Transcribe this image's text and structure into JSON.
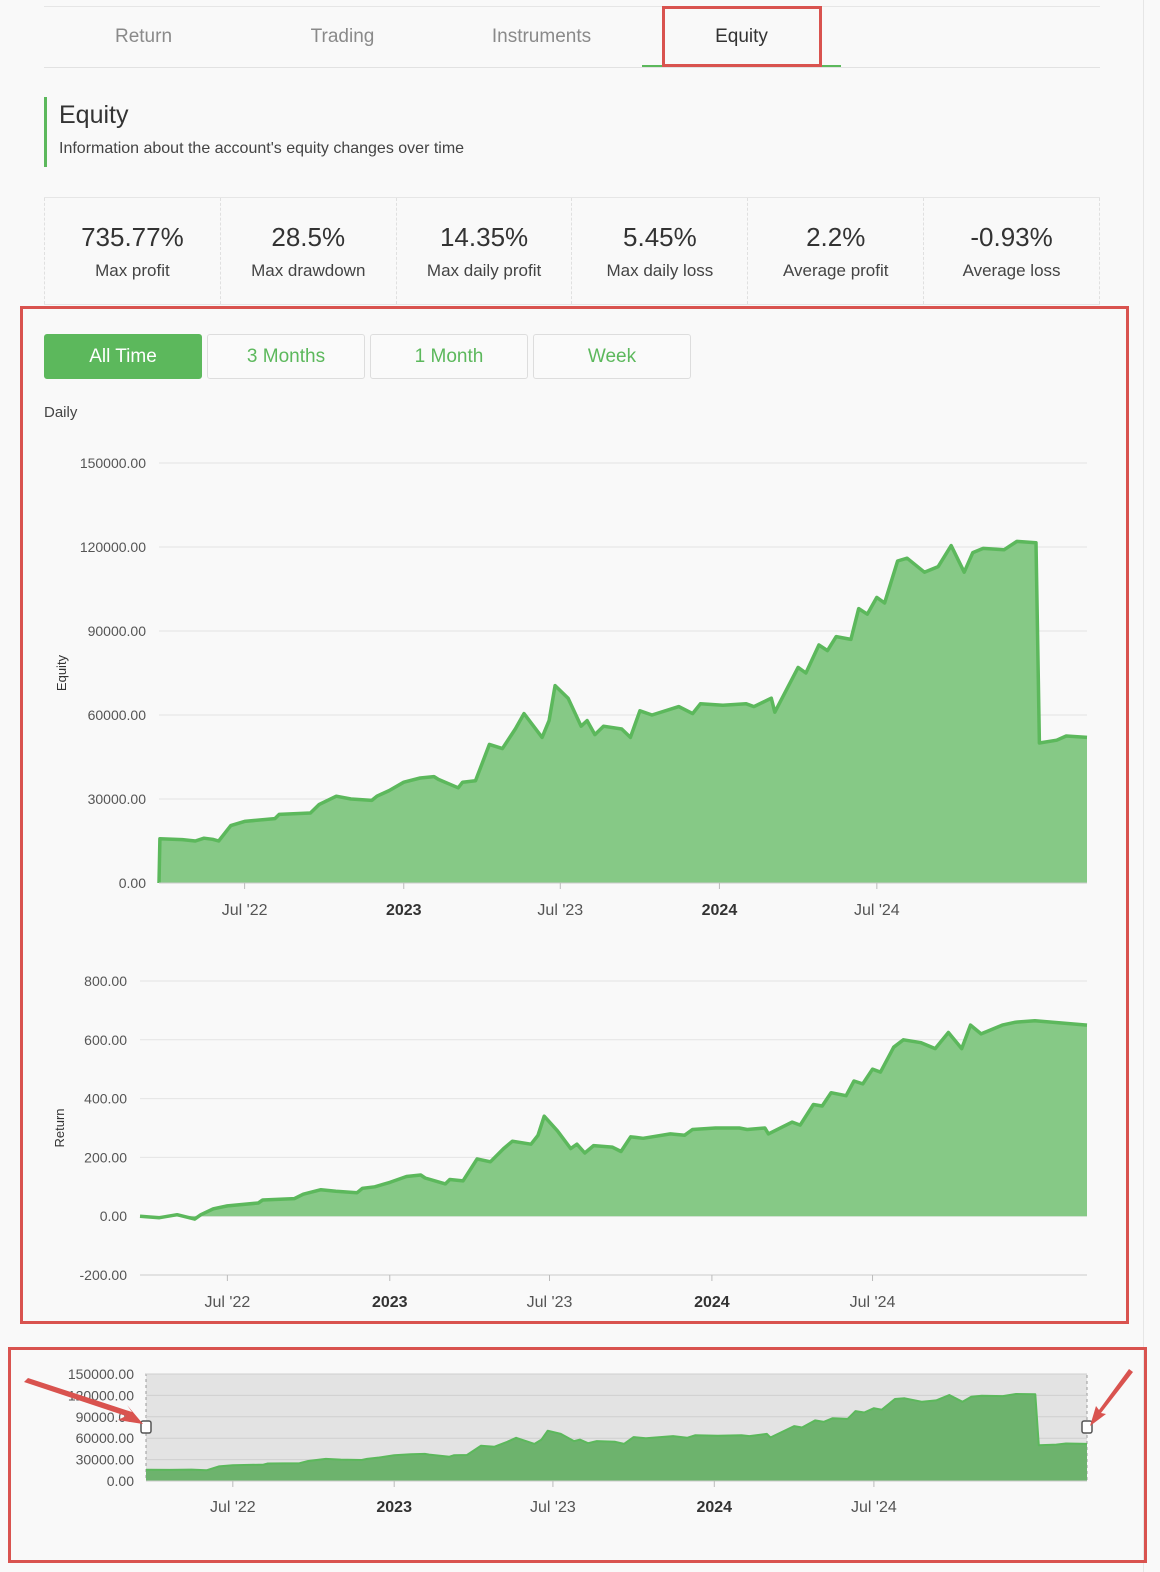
{
  "tabs": [
    {
      "label": "Return",
      "active": false
    },
    {
      "label": "Trading",
      "active": false
    },
    {
      "label": "Instruments",
      "active": false
    },
    {
      "label": "Equity",
      "active": true
    }
  ],
  "section": {
    "title": "Equity",
    "subtitle": "Information about the account's equity changes over time"
  },
  "stats": [
    {
      "value": "735.77%",
      "label": "Max profit"
    },
    {
      "value": "28.5%",
      "label": "Max drawdown"
    },
    {
      "value": "14.35%",
      "label": "Max daily profit"
    },
    {
      "value": "5.45%",
      "label": "Max daily loss"
    },
    {
      "value": "2.2%",
      "label": "Average profit"
    },
    {
      "value": "-0.93%",
      "label": "Average loss"
    }
  ],
  "range_buttons": [
    {
      "label": "All Time",
      "active": true
    },
    {
      "label": "3 Months",
      "active": false
    },
    {
      "label": "1 Month",
      "active": false
    },
    {
      "label": "Week",
      "active": false
    }
  ],
  "period_label": "Daily",
  "colors": {
    "accent": "#5cb85c",
    "fill": "#86c986",
    "navigator_fill": "#6db36d",
    "highlight": "#d9534f"
  },
  "chart_data": [
    {
      "type": "area",
      "ylabel": "Equity",
      "ylim": [
        0,
        150000
      ],
      "y_ticks": [
        "150000.00",
        "120000.00",
        "90000.00",
        "60000.00",
        "30000.00",
        "0.00"
      ],
      "y_tick_values": [
        150000,
        120000,
        90000,
        60000,
        30000,
        0
      ],
      "x_labels": [
        {
          "text": "Jul '22",
          "bold": false
        },
        {
          "text": "2023",
          "bold": true
        },
        {
          "text": "Jul '23",
          "bold": false
        },
        {
          "text": "2024",
          "bold": true
        },
        {
          "text": "Jul '24",
          "bold": false
        }
      ],
      "x_label_dates": [
        "2022-07-01",
        "2023-01-01",
        "2023-07-01",
        "2024-01-01",
        "2024-07-01"
      ],
      "x_range": [
        "2022-03-24",
        "2025-03-01"
      ],
      "x": [
        "2022-03-24",
        "2022-03-25",
        "2022-04-20",
        "2022-05-05",
        "2022-05-15",
        "2022-05-25",
        "2022-06-01",
        "2022-06-15",
        "2022-07-01",
        "2022-08-05",
        "2022-08-10",
        "2022-09-15",
        "2022-09-25",
        "2022-10-15",
        "2022-11-01",
        "2022-11-25",
        "2022-12-01",
        "2022-12-15",
        "2023-01-01",
        "2023-01-20",
        "2023-02-05",
        "2023-02-10",
        "2023-03-05",
        "2023-03-10",
        "2023-03-25",
        "2023-04-10",
        "2023-04-25",
        "2023-05-10",
        "2023-05-20",
        "2023-06-10",
        "2023-06-18",
        "2023-06-25",
        "2023-07-10",
        "2023-07-25",
        "2023-08-01",
        "2023-08-10",
        "2023-08-20",
        "2023-09-10",
        "2023-09-20",
        "2023-10-01",
        "2023-10-15",
        "2023-11-15",
        "2023-12-01",
        "2023-12-10",
        "2024-01-05",
        "2024-02-01",
        "2024-02-10",
        "2024-03-01",
        "2024-03-05",
        "2024-04-01",
        "2024-04-10",
        "2024-04-25",
        "2024-05-05",
        "2024-05-15",
        "2024-06-01",
        "2024-06-10",
        "2024-06-20",
        "2024-07-01",
        "2024-07-10",
        "2024-07-25",
        "2024-08-05",
        "2024-08-25",
        "2024-09-10",
        "2024-09-25",
        "2024-10-10",
        "2024-10-20",
        "2024-11-01",
        "2024-11-25",
        "2024-12-10",
        "2025-01-01",
        "2025-01-05",
        "2025-01-25",
        "2025-02-05",
        "2025-03-01"
      ],
      "y": [
        0,
        15800,
        15500,
        15000,
        16000,
        15600,
        15000,
        20500,
        22000,
        23000,
        24500,
        25000,
        28000,
        31000,
        30000,
        29500,
        31000,
        33000,
        36000,
        37500,
        38000,
        37000,
        34000,
        36000,
        36500,
        49500,
        48000,
        55000,
        60500,
        52000,
        58000,
        70500,
        66000,
        56000,
        58000,
        53000,
        56000,
        55000,
        52000,
        61500,
        60000,
        63000,
        60500,
        64000,
        63500,
        64000,
        63000,
        66000,
        61000,
        77000,
        75000,
        85000,
        83000,
        88000,
        87000,
        98000,
        96000,
        102000,
        100000,
        115000,
        116000,
        111000,
        113000,
        120500,
        111000,
        118000,
        119500,
        119000,
        122000,
        121500,
        50000,
        51000,
        52500,
        52000
      ]
    },
    {
      "type": "area",
      "ylabel": "Return",
      "ylim": [
        -200,
        800
      ],
      "y_ticks": [
        "800.00",
        "600.00",
        "400.00",
        "200.00",
        "0.00",
        "-200.00"
      ],
      "y_tick_values": [
        800,
        600,
        400,
        200,
        0,
        -200
      ],
      "x_labels": [
        {
          "text": "Jul '22",
          "bold": false
        },
        {
          "text": "2023",
          "bold": true
        },
        {
          "text": "Jul '23",
          "bold": false
        },
        {
          "text": "2024",
          "bold": true
        },
        {
          "text": "Jul '24",
          "bold": false
        }
      ],
      "x_label_dates": [
        "2022-07-01",
        "2023-01-01",
        "2023-07-01",
        "2024-01-01",
        "2024-07-01"
      ],
      "x_range": [
        "2022-03-24",
        "2025-03-01"
      ],
      "x": [
        "2022-03-24",
        "2022-04-15",
        "2022-05-05",
        "2022-05-25",
        "2022-06-01",
        "2022-06-15",
        "2022-07-01",
        "2022-08-05",
        "2022-08-10",
        "2022-09-15",
        "2022-09-25",
        "2022-10-15",
        "2022-11-01",
        "2022-11-25",
        "2022-12-01",
        "2022-12-15",
        "2023-01-01",
        "2023-01-20",
        "2023-02-05",
        "2023-02-10",
        "2023-03-05",
        "2023-03-10",
        "2023-03-25",
        "2023-04-10",
        "2023-04-25",
        "2023-05-10",
        "2023-05-20",
        "2023-06-10",
        "2023-06-18",
        "2023-06-25",
        "2023-07-10",
        "2023-07-25",
        "2023-08-01",
        "2023-08-10",
        "2023-08-20",
        "2023-09-10",
        "2023-09-20",
        "2023-10-01",
        "2023-10-15",
        "2023-11-15",
        "2023-12-01",
        "2023-12-10",
        "2024-01-05",
        "2024-02-01",
        "2024-02-10",
        "2024-03-01",
        "2024-03-05",
        "2024-04-01",
        "2024-04-10",
        "2024-04-25",
        "2024-05-05",
        "2024-05-15",
        "2024-06-01",
        "2024-06-10",
        "2024-06-20",
        "2024-07-01",
        "2024-07-10",
        "2024-07-25",
        "2024-08-05",
        "2024-08-25",
        "2024-09-10",
        "2024-09-25",
        "2024-10-10",
        "2024-10-20",
        "2024-11-01",
        "2024-11-25",
        "2024-12-10",
        "2025-01-01",
        "2025-03-01"
      ],
      "y": [
        0,
        -5,
        5,
        -10,
        5,
        25,
        35,
        45,
        55,
        60,
        75,
        90,
        85,
        80,
        95,
        100,
        115,
        135,
        140,
        130,
        110,
        125,
        120,
        195,
        185,
        230,
        255,
        245,
        275,
        340,
        290,
        230,
        245,
        215,
        240,
        235,
        220,
        270,
        265,
        280,
        275,
        295,
        300,
        300,
        295,
        300,
        280,
        320,
        310,
        380,
        375,
        420,
        410,
        460,
        450,
        500,
        490,
        575,
        600,
        590,
        570,
        625,
        570,
        650,
        620,
        650,
        660,
        665,
        650
      ]
    },
    {
      "type": "area",
      "ylabel": "",
      "ylim": [
        0,
        150000
      ],
      "y_ticks": [
        "150000.00",
        "120000.00",
        "90000.00",
        "60000.00",
        "30000.00",
        "0.00"
      ],
      "y_tick_values": [
        150000,
        120000,
        90000,
        60000,
        30000,
        0
      ],
      "x_labels": [
        {
          "text": "Jul '22",
          "bold": false
        },
        {
          "text": "2023",
          "bold": true
        },
        {
          "text": "Jul '23",
          "bold": false
        },
        {
          "text": "2024",
          "bold": true
        },
        {
          "text": "Jul '24",
          "bold": false
        }
      ],
      "x_label_dates": [
        "2022-07-01",
        "2023-01-01",
        "2023-07-01",
        "2024-01-01",
        "2024-07-01"
      ],
      "x_range": [
        "2022-03-24",
        "2025-03-01"
      ],
      "x": [
        "2022-03-24",
        "2022-04-20",
        "2022-05-15",
        "2022-06-01",
        "2022-06-15",
        "2022-07-01",
        "2022-08-05",
        "2022-08-10",
        "2022-09-15",
        "2022-09-25",
        "2022-10-15",
        "2022-11-01",
        "2022-11-25",
        "2022-12-01",
        "2022-12-15",
        "2023-01-01",
        "2023-01-20",
        "2023-02-05",
        "2023-02-10",
        "2023-03-05",
        "2023-03-10",
        "2023-03-25",
        "2023-04-10",
        "2023-04-25",
        "2023-05-10",
        "2023-05-20",
        "2023-06-10",
        "2023-06-18",
        "2023-06-25",
        "2023-07-10",
        "2023-07-25",
        "2023-08-01",
        "2023-08-10",
        "2023-08-20",
        "2023-09-10",
        "2023-09-20",
        "2023-10-01",
        "2023-10-15",
        "2023-11-15",
        "2023-12-01",
        "2023-12-10",
        "2024-01-05",
        "2024-02-01",
        "2024-02-10",
        "2024-03-01",
        "2024-03-05",
        "2024-04-01",
        "2024-04-10",
        "2024-04-25",
        "2024-05-05",
        "2024-05-15",
        "2024-06-01",
        "2024-06-10",
        "2024-06-20",
        "2024-07-01",
        "2024-07-10",
        "2024-07-25",
        "2024-08-05",
        "2024-08-25",
        "2024-09-10",
        "2024-09-25",
        "2024-10-10",
        "2024-10-20",
        "2024-11-01",
        "2024-11-25",
        "2024-12-10",
        "2025-01-01",
        "2025-01-05",
        "2025-01-25",
        "2025-02-05",
        "2025-03-01"
      ],
      "y": [
        15800,
        15500,
        16000,
        15000,
        20500,
        22000,
        23000,
        24500,
        25000,
        28000,
        31000,
        30000,
        29500,
        31000,
        33000,
        36000,
        37500,
        38000,
        37000,
        34000,
        36000,
        36500,
        49500,
        48000,
        55000,
        60500,
        52000,
        58000,
        70500,
        66000,
        56000,
        58000,
        53000,
        56000,
        55000,
        52000,
        61500,
        60000,
        63000,
        60500,
        64000,
        63500,
        64000,
        63000,
        66000,
        61000,
        77000,
        75000,
        85000,
        83000,
        88000,
        87000,
        98000,
        96000,
        102000,
        100000,
        115000,
        116000,
        111000,
        113000,
        120500,
        111000,
        118000,
        119500,
        119000,
        122000,
        121500,
        50000,
        51000,
        52500,
        52000
      ]
    }
  ]
}
